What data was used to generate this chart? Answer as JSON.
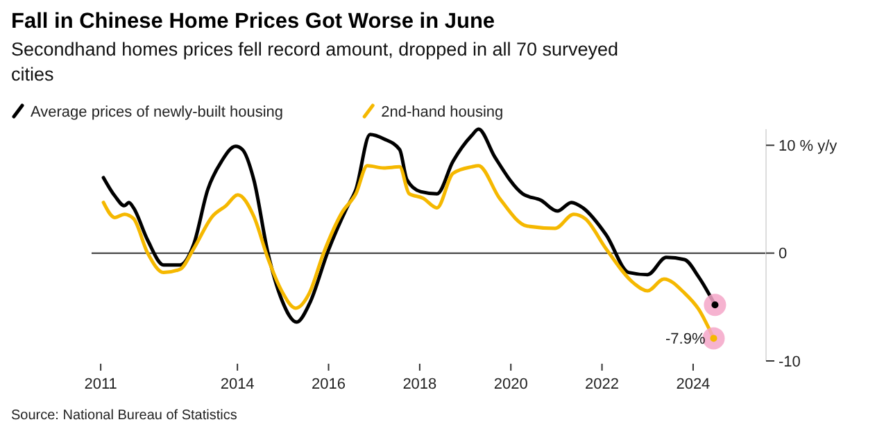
{
  "chart_data": {
    "type": "line",
    "title": "Fall in Chinese Home Prices Got Worse in June",
    "subtitle": "Secondhand homes prices fell record amount, dropped in all 70 surveyed cities",
    "legend": "top left",
    "xlim": [
      2010.8,
      2025.6
    ],
    "xticks": [
      2011,
      2014,
      2016,
      2018,
      2020,
      2022,
      2024
    ],
    "ylim": [
      -10,
      11.5
    ],
    "yticks": [
      {
        "value": 10,
        "label": "10 % y/y"
      },
      0,
      -10
    ],
    "ref_lines": [
      {
        "axis": "y",
        "value": 0
      }
    ],
    "annotations": [
      {
        "text": "-7.9%",
        "x": 2024.45,
        "y": -7.9
      },
      "Source: National Bureau of Statistics"
    ],
    "series": [
      {
        "name": "Average prices of newly-built housing",
        "color": "#000000",
        "x": [
          2011.06,
          2011.31,
          2011.52,
          2011.62,
          2011.72,
          2012.03,
          2012.38,
          2012.74,
          2013.04,
          2013.35,
          2013.65,
          2013.96,
          2014.11,
          2014.36,
          2014.67,
          2014.97,
          2015.3,
          2015.58,
          2015.99,
          2016.4,
          2016.6,
          2016.91,
          2017.21,
          2017.56,
          2017.72,
          2018.02,
          2018.38,
          2018.73,
          2019.14,
          2019.29,
          2019.65,
          2020.26,
          2020.66,
          2021.02,
          2021.33,
          2021.58,
          2022.09,
          2022.59,
          2023.0,
          2023.41,
          2023.81,
          2024.12,
          2024.48
        ],
        "values": [
          7.0,
          5.3,
          4.4,
          4.7,
          4.2,
          1.2,
          -1.1,
          -1.1,
          0.8,
          5.9,
          8.5,
          9.9,
          9.6,
          6.8,
          0,
          -4.3,
          -6.4,
          -4.7,
          0.2,
          4.2,
          5.9,
          11.0,
          10.6,
          9.6,
          6.8,
          5.7,
          5.5,
          8.5,
          10.9,
          11.5,
          8.9,
          5.5,
          4.9,
          3.9,
          4.7,
          4.2,
          1.7,
          -1.8,
          -2.0,
          -0.4,
          -0.6,
          -2.2,
          -4.8
        ]
      },
      {
        "name": "2nd-hand housing",
        "color": "#f5b800",
        "x": [
          2011.06,
          2011.31,
          2011.52,
          2011.72,
          2012.03,
          2012.38,
          2012.74,
          2013.04,
          2013.45,
          2013.75,
          2014.01,
          2014.36,
          2014.67,
          2014.97,
          2015.28,
          2015.58,
          2015.89,
          2016.3,
          2016.6,
          2016.85,
          2017.21,
          2017.56,
          2017.77,
          2018.07,
          2018.38,
          2018.73,
          2019.14,
          2019.29,
          2019.75,
          2020.36,
          2020.97,
          2021.38,
          2021.63,
          2022.09,
          2022.7,
          2023.0,
          2023.36,
          2023.81,
          2024.12,
          2024.45
        ],
        "values": [
          4.7,
          3.3,
          3.6,
          3.2,
          0,
          -1.8,
          -1.5,
          0.4,
          3.4,
          4.4,
          5.4,
          3.4,
          -0.5,
          -3.5,
          -5.1,
          -3.7,
          0,
          3.8,
          5.5,
          8.1,
          7.9,
          8.0,
          5.5,
          5.1,
          4.2,
          7.4,
          8.0,
          8.1,
          5.1,
          2.5,
          2.3,
          3.6,
          3.2,
          0.4,
          -2.8,
          -3.5,
          -2.4,
          -3.7,
          -5.2,
          -7.9
        ]
      }
    ]
  }
}
